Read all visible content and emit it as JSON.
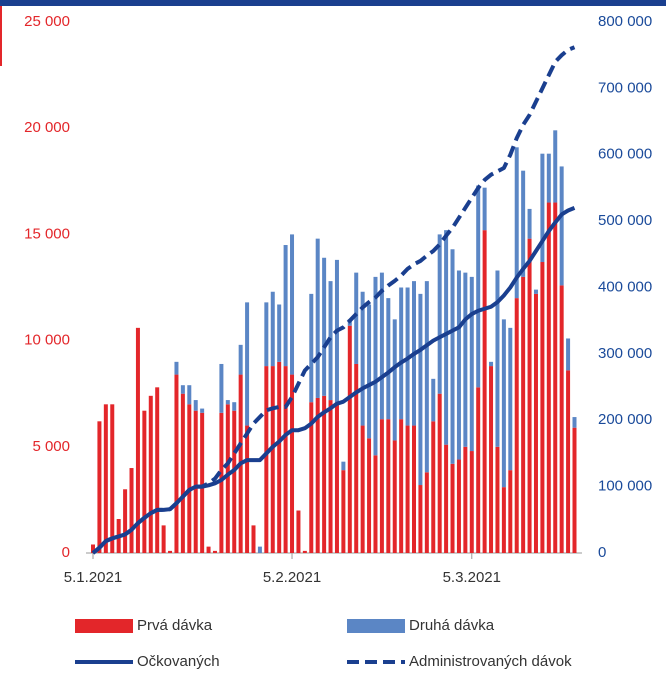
{
  "chart_data": {
    "type": "bar",
    "categories": [
      "5.1.2021",
      null,
      null,
      null,
      null,
      null,
      null,
      null,
      null,
      null,
      null,
      null,
      null,
      null,
      null,
      null,
      null,
      null,
      null,
      null,
      null,
      null,
      null,
      null,
      null,
      null,
      null,
      null,
      null,
      null,
      null,
      "5.2.2021",
      null,
      null,
      null,
      null,
      null,
      null,
      null,
      null,
      null,
      null,
      null,
      null,
      null,
      null,
      null,
      null,
      null,
      null,
      null,
      null,
      null,
      null,
      null,
      null,
      null,
      null,
      null,
      "5.3.2021",
      null,
      null,
      null,
      null,
      null,
      null,
      null,
      null,
      null,
      null,
      null,
      null,
      null,
      null,
      null,
      null
    ],
    "series": [
      {
        "name": "Prvá dávka",
        "type": "bar",
        "axis": "y",
        "color": "#e3262a",
        "values": [
          400,
          6200,
          7000,
          7000,
          1600,
          3000,
          4000,
          10600,
          6700,
          7400,
          7800,
          1300,
          100,
          8400,
          7500,
          7000,
          6700,
          6600,
          300,
          100,
          6600,
          7000,
          6700,
          8400,
          6000,
          1300,
          0,
          8800,
          8800,
          9000,
          8800,
          8400,
          2000,
          100,
          7100,
          7300,
          7400,
          7200,
          7100,
          3900,
          10700,
          8900,
          6000,
          5400,
          4600,
          6300,
          6300,
          5300,
          6300,
          6000,
          6000,
          3200,
          3800,
          6200,
          7500,
          5100,
          4200,
          4400,
          5000,
          4800,
          7800,
          15200,
          8800,
          5000,
          3100,
          3900,
          12000,
          13000,
          14800,
          12200,
          13700,
          16500,
          16500,
          12600,
          8600,
          5900
        ]
      },
      {
        "name": "Druhá dávka",
        "type": "bar",
        "axis": "y",
        "color": "#5b86c5",
        "values": [
          0,
          0,
          0,
          0,
          0,
          0,
          0,
          0,
          0,
          0,
          0,
          0,
          0,
          600,
          400,
          900,
          500,
          200,
          0,
          0,
          2300,
          200,
          400,
          1400,
          5800,
          0,
          300,
          3000,
          3500,
          2700,
          5700,
          6600,
          0,
          0,
          5100,
          7500,
          6500,
          5600,
          6700,
          400,
          300,
          4300,
          6300,
          6300,
          8400,
          6900,
          5700,
          5700,
          6200,
          6500,
          6800,
          9000,
          9000,
          2000,
          7500,
          10100,
          10100,
          8900,
          8200,
          8200,
          9500,
          2000,
          200,
          8300,
          7900,
          6700,
          7100,
          5000,
          1400,
          200,
          5100,
          2300,
          3400,
          5600,
          1500,
          500
        ]
      },
      {
        "name": "Očkovaných",
        "type": "line",
        "axis": "y2",
        "dashed": false,
        "color": "#1a3f8f",
        "values": [
          0,
          8000,
          18000,
          22000,
          25000,
          28000,
          35000,
          45000,
          53000,
          60000,
          65000,
          65000,
          66000,
          75000,
          85000,
          95000,
          100000,
          100000,
          102000,
          105000,
          110000,
          118000,
          125000,
          135000,
          140000,
          140000,
          140000,
          150000,
          160000,
          168000,
          178000,
          185000,
          185000,
          188000,
          195000,
          205000,
          212000,
          218000,
          225000,
          228000,
          235000,
          242000,
          248000,
          253000,
          258000,
          265000,
          272000,
          280000,
          287000,
          293000,
          300000,
          306000,
          313000,
          320000,
          325000,
          330000,
          335000,
          340000,
          352000,
          360000,
          365000,
          368000,
          371000,
          378000,
          388000,
          400000,
          415000,
          428000,
          440000,
          455000,
          470000,
          485000,
          498000,
          510000,
          516000,
          520000
        ]
      },
      {
        "name": "Administrovaných dávok",
        "type": "line",
        "axis": "y2",
        "dashed": true,
        "color": "#1a3f8f",
        "values": [
          0,
          8000,
          18000,
          22000,
          25000,
          28000,
          35000,
          45000,
          53000,
          60000,
          65000,
          65000,
          66000,
          75000,
          85000,
          95000,
          100000,
          100000,
          105000,
          112000,
          125000,
          135000,
          150000,
          165000,
          180000,
          195000,
          205000,
          215000,
          218000,
          220000,
          220000,
          235000,
          255000,
          275000,
          285000,
          295000,
          310000,
          325000,
          335000,
          340000,
          350000,
          360000,
          370000,
          378000,
          385000,
          395000,
          403000,
          410000,
          418000,
          428000,
          435000,
          440000,
          448000,
          455000,
          465000,
          478000,
          490000,
          505000,
          520000,
          535000,
          550000,
          562000,
          570000,
          575000,
          580000,
          600000,
          625000,
          645000,
          660000,
          680000,
          700000,
          720000,
          740000,
          750000,
          758000,
          762000
        ]
      }
    ],
    "ylim": [
      0,
      25000
    ],
    "yticks": [
      0,
      {
        "value": 5000,
        "label": "5 000"
      },
      {
        "value": 10000,
        "label": "10 000"
      },
      {
        "value": 15000,
        "label": "15 000"
      },
      {
        "value": 20000,
        "label": "20 000"
      },
      {
        "value": 25000,
        "label": "25 000"
      }
    ],
    "y2lim": [
      0,
      800000
    ],
    "y2ticks": [
      0,
      {
        "value": 100000,
        "label": "100 000"
      },
      {
        "value": 200000,
        "label": "200 000"
      },
      {
        "value": 300000,
        "label": "300 000"
      },
      {
        "value": 400000,
        "label": "400 000"
      },
      {
        "value": 500000,
        "label": "500 000"
      },
      {
        "value": 600000,
        "label": "600 000"
      },
      {
        "value": 700000,
        "label": "700 000"
      },
      {
        "value": 800000,
        "label": "800 000"
      }
    ],
    "ycolor": "#e3262a",
    "y2color": "#1a4a9a"
  }
}
